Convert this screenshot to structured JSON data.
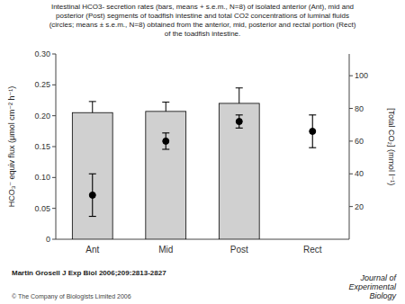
{
  "chart_data": {
    "type": "bar",
    "title": "Intestinal HCO3- secretion rates (bars, means + s.e.m., N=8) of isolated anterior (Ant), mid and\nposterior (Post) segments of toadfish intestine and total CO2 concentrations of luminal fluids\n(circles; means ± s.e.m., N=8) obtained from the anterior, mid, posterior and rectal portion (Rect)\nof the toadfish intestine.",
    "categories": [
      "Ant",
      "Mid",
      "Post",
      "Rect"
    ],
    "series": [
      {
        "type": "bar",
        "color": "#d0d0d0",
        "values": [
          0.205,
          0.207,
          0.22,
          null
        ],
        "errors": [
          0.018,
          0.015,
          0.025,
          null
        ]
      },
      {
        "type": "scatter",
        "axis": "y2",
        "color": "#000000",
        "marker": "circle",
        "values": [
          27,
          60,
          72,
          66
        ],
        "errors": [
          13,
          5,
          4,
          10
        ]
      }
    ],
    "ylabel": "HCO₃⁻ equiv flux (μmol cm⁻² h⁻¹)",
    "y2label": "[Total CO₂] (mmol l⁻¹)",
    "ylim": [
      0,
      0.3
    ],
    "yticks": [
      0,
      0.05,
      {
        "value": 0.1,
        "label": "0.10"
      },
      0.15,
      {
        "value": 0.2,
        "label": "0.20"
      },
      0.25,
      {
        "value": 0.3,
        "label": "0.30"
      }
    ],
    "y2lim": [
      0,
      113.3
    ],
    "y2ticks": [
      20,
      40,
      60,
      80,
      100
    ],
    "grid": false,
    "annotations": [
      "Martin Grosell J Exp Biol 2006;209:2813-2827",
      "© The Company of Biologists Limited 2006",
      "Journal of\nExperimental\nBiology"
    ]
  }
}
